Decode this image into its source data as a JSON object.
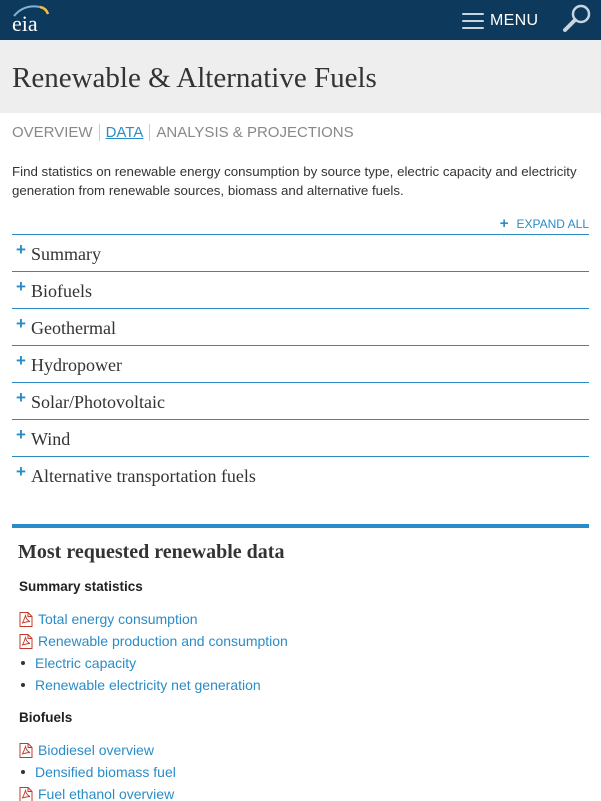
{
  "header": {
    "logo_text": "eia",
    "menu_label": "MENU",
    "colors": {
      "bar": "#0d3a5c",
      "accent": "#2a8cc6"
    }
  },
  "page": {
    "title": "Renewable & Alternative Fuels"
  },
  "tabs": [
    {
      "label": "OVERVIEW",
      "active": false
    },
    {
      "label": "DATA",
      "active": true
    },
    {
      "label": "ANALYSIS & PROJECTIONS",
      "active": false
    }
  ],
  "intro": "Find statistics on renewable energy consumption by source type, electric capacity and electricity generation from renewable sources, biomass and alternative fuels.",
  "expand_all": "EXPAND ALL",
  "accordion": [
    {
      "label": "Summary"
    },
    {
      "label": "Biofuels"
    },
    {
      "label": "Geothermal"
    },
    {
      "label": "Hydropower"
    },
    {
      "label": "Solar/Photovoltaic"
    },
    {
      "label": "Wind"
    },
    {
      "label": "Alternative transportation fuels"
    }
  ],
  "most_requested": {
    "title": "Most requested renewable data",
    "sections": [
      {
        "heading": "Summary statistics",
        "links": [
          {
            "label": "Total energy consumption",
            "icon": "pdf-icon"
          },
          {
            "label": "Renewable production and consumption",
            "icon": "pdf-icon"
          },
          {
            "label": "Electric capacity",
            "icon": "bullet"
          },
          {
            "label": "Renewable electricity net generation",
            "icon": "bullet"
          }
        ]
      },
      {
        "heading": "Biofuels",
        "links": [
          {
            "label": "Biodiesel overview",
            "icon": "pdf-icon"
          },
          {
            "label": "Densified biomass fuel",
            "icon": "bullet"
          },
          {
            "label": "Fuel ethanol overview",
            "icon": "pdf-icon"
          }
        ]
      }
    ]
  }
}
